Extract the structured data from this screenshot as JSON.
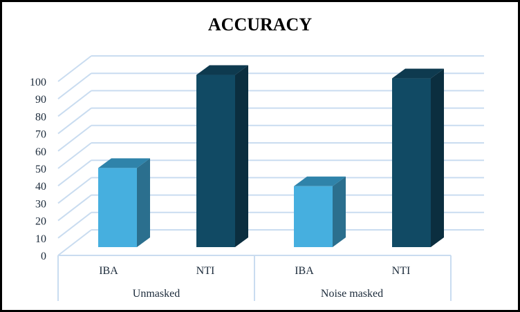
{
  "chart_data": {
    "type": "bar",
    "subtype": "3d-clustered-column",
    "title": "ACCURACY",
    "xlabel": "",
    "ylabel": "",
    "ylim": [
      0,
      100
    ],
    "yticks": [
      0,
      10,
      20,
      30,
      40,
      50,
      60,
      70,
      80,
      90,
      100
    ],
    "grid": true,
    "legend": "none",
    "groups": [
      {
        "label": "Unmasked",
        "categories": [
          "IBA",
          "NTI"
        ]
      },
      {
        "label": "Noise masked",
        "categories": [
          "IBA",
          "NTI"
        ]
      }
    ],
    "categories": [
      "IBA",
      "NTI",
      "IBA",
      "NTI"
    ],
    "values": [
      45.5,
      99,
      35,
      97
    ],
    "bars": [
      {
        "group": "Unmasked",
        "category": "IBA",
        "value": 45.5,
        "color": "#46afdf"
      },
      {
        "group": "Unmasked",
        "category": "NTI",
        "value": 99,
        "color": "#114a64"
      },
      {
        "group": "Noise masked",
        "category": "IBA",
        "value": 35,
        "color": "#46afdf"
      },
      {
        "group": "Noise masked",
        "category": "NTI",
        "value": 97,
        "color": "#114a64"
      }
    ]
  },
  "colors": {
    "iba_front": "#46afdf",
    "iba_top": "#2f83aa",
    "iba_side": "#2b6f8e",
    "nti_front": "#114a64",
    "nti_top": "#0e3a4f",
    "nti_side": "#0b2e3f",
    "grid": "#c9dcf0",
    "text": "#1b2a3a"
  }
}
